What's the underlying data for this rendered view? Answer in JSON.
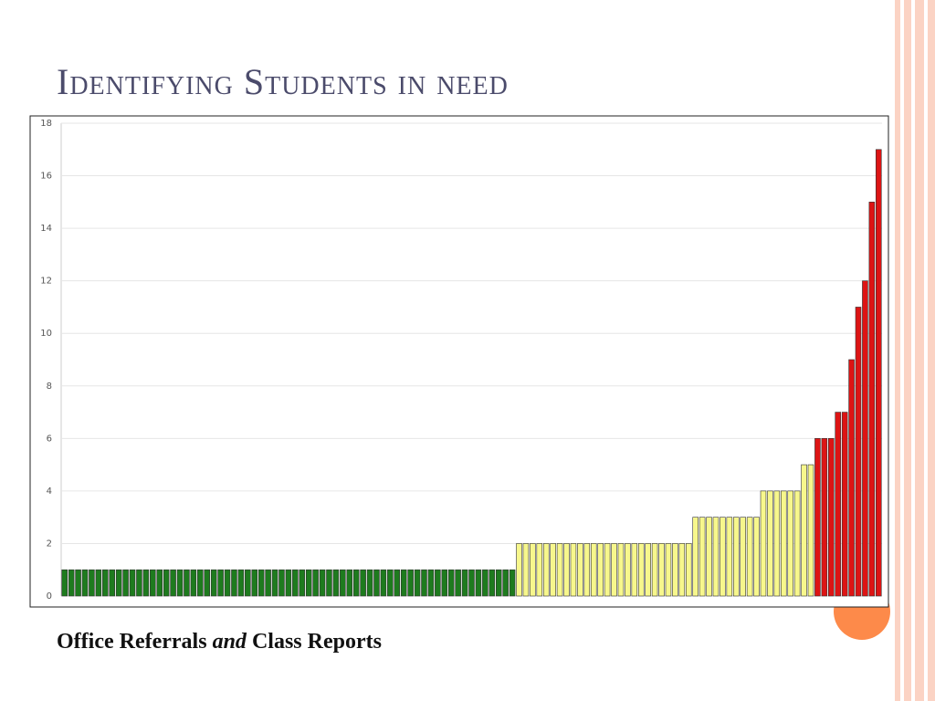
{
  "title": "Identifying Students in need",
  "caption": {
    "before": "Office Referrals",
    "italic": "and",
    "after": "Class Reports"
  },
  "chart_data": {
    "type": "bar",
    "values": [
      1,
      1,
      1,
      1,
      1,
      1,
      1,
      1,
      1,
      1,
      1,
      1,
      1,
      1,
      1,
      1,
      1,
      1,
      1,
      1,
      1,
      1,
      1,
      1,
      1,
      1,
      1,
      1,
      1,
      1,
      1,
      1,
      1,
      1,
      1,
      1,
      1,
      1,
      1,
      1,
      1,
      1,
      1,
      1,
      1,
      1,
      1,
      1,
      1,
      1,
      1,
      1,
      1,
      1,
      1,
      1,
      1,
      1,
      1,
      1,
      1,
      1,
      1,
      1,
      1,
      1,
      1,
      2,
      2,
      2,
      2,
      2,
      2,
      2,
      2,
      2,
      2,
      2,
      2,
      2,
      2,
      2,
      2,
      2,
      2,
      2,
      2,
      2,
      2,
      2,
      2,
      2,
      2,
      3,
      3,
      3,
      3,
      3,
      3,
      3,
      3,
      3,
      3,
      4,
      4,
      4,
      4,
      4,
      4,
      5,
      5,
      6,
      6,
      6,
      7,
      7,
      9,
      11,
      12,
      15,
      17
    ],
    "colors": [
      "#1e7b1e",
      "#1e7b1e",
      "#1e7b1e",
      "#1e7b1e",
      "#1e7b1e",
      "#1e7b1e",
      "#1e7b1e",
      "#1e7b1e",
      "#1e7b1e",
      "#1e7b1e",
      "#1e7b1e",
      "#1e7b1e",
      "#1e7b1e",
      "#1e7b1e",
      "#1e7b1e",
      "#1e7b1e",
      "#1e7b1e",
      "#1e7b1e",
      "#1e7b1e",
      "#1e7b1e",
      "#1e7b1e",
      "#1e7b1e",
      "#1e7b1e",
      "#1e7b1e",
      "#1e7b1e",
      "#1e7b1e",
      "#1e7b1e",
      "#1e7b1e",
      "#1e7b1e",
      "#1e7b1e",
      "#1e7b1e",
      "#1e7b1e",
      "#1e7b1e",
      "#1e7b1e",
      "#1e7b1e",
      "#1e7b1e",
      "#1e7b1e",
      "#1e7b1e",
      "#1e7b1e",
      "#1e7b1e",
      "#1e7b1e",
      "#1e7b1e",
      "#1e7b1e",
      "#1e7b1e",
      "#1e7b1e",
      "#1e7b1e",
      "#1e7b1e",
      "#1e7b1e",
      "#1e7b1e",
      "#1e7b1e",
      "#1e7b1e",
      "#1e7b1e",
      "#1e7b1e",
      "#1e7b1e",
      "#1e7b1e",
      "#1e7b1e",
      "#1e7b1e",
      "#1e7b1e",
      "#1e7b1e",
      "#1e7b1e",
      "#1e7b1e",
      "#1e7b1e",
      "#1e7b1e",
      "#1e7b1e",
      "#1e7b1e",
      "#1e7b1e",
      "#1e7b1e",
      "#f7f78c",
      "#f7f78c",
      "#f7f78c",
      "#f7f78c",
      "#f7f78c",
      "#f7f78c",
      "#f7f78c",
      "#f7f78c",
      "#f7f78c",
      "#f7f78c",
      "#f7f78c",
      "#f7f78c",
      "#f7f78c",
      "#f7f78c",
      "#f7f78c",
      "#f7f78c",
      "#f7f78c",
      "#f7f78c",
      "#f7f78c",
      "#f7f78c",
      "#f7f78c",
      "#f7f78c",
      "#f7f78c",
      "#f7f78c",
      "#f7f78c",
      "#f7f78c",
      "#f7f78c",
      "#f7f78c",
      "#f7f78c",
      "#f7f78c",
      "#f7f78c",
      "#f7f78c",
      "#f7f78c",
      "#f7f78c",
      "#f7f78c",
      "#f7f78c",
      "#f7f78c",
      "#f7f78c",
      "#f7f78c",
      "#f7f78c",
      "#f7f78c",
      "#f7f78c",
      "#f7f78c",
      "#f7f78c",
      "#dd1414",
      "#dd1414",
      "#dd1414",
      "#dd1414",
      "#dd1414",
      "#dd1414",
      "#dd1414",
      "#dd1414",
      "#dd1414",
      "#dd1414"
    ],
    "ylim": [
      0,
      18
    ],
    "yticks": [
      0,
      2,
      4,
      6,
      8,
      10,
      12,
      14,
      16,
      18
    ],
    "grid": true
  }
}
